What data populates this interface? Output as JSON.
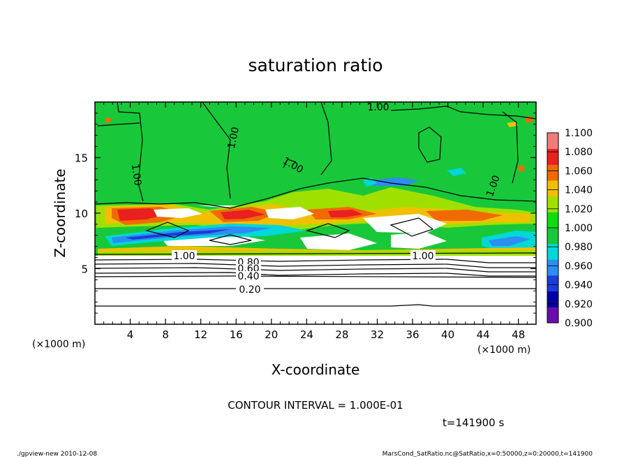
{
  "chart_data": {
    "type": "heatmap",
    "title": "saturation ratio",
    "xlabel": "X-coordinate",
    "ylabel": "Z-coordinate",
    "x_unit_left": "(×1000 m)",
    "x_unit_right": "(×1000 m)",
    "xlim": [
      0,
      50
    ],
    "ylim": [
      0,
      20
    ],
    "x_ticks": [
      4,
      8,
      12,
      16,
      20,
      24,
      28,
      32,
      36,
      40,
      44,
      48
    ],
    "y_ticks": [
      5,
      10,
      15
    ],
    "colorbar": {
      "levels": [
        0.9,
        0.92,
        0.94,
        0.96,
        0.98,
        1.0,
        1.02,
        1.04,
        1.06,
        1.08,
        1.1
      ],
      "labels": [
        "0.900",
        "0.920",
        "0.940",
        "0.960",
        "0.980",
        "1.000",
        "1.020",
        "1.040",
        "1.060",
        "1.080",
        "1.100"
      ],
      "colors": [
        "#6a0dad",
        "#0000a0",
        "#1c3cd8",
        "#2e8cf2",
        "#00d7d7",
        "#18c83a",
        "#10dc10",
        "#a0e000",
        "#f0c000",
        "#f06a00",
        "#e82020",
        "#f07c7c"
      ]
    },
    "contour_labels": [
      {
        "text": "1.00",
        "x": 40.3,
        "z": 19.6
      },
      {
        "text": "1.00",
        "x": 15.5,
        "z": 16.8
      },
      {
        "text": "1.00",
        "x": 4.6,
        "z": 13.5
      },
      {
        "text": "1.00",
        "x": 22.4,
        "z": 14.4
      },
      {
        "text": "1.00",
        "x": 44.5,
        "z": 12.3
      },
      {
        "text": "1.00",
        "x": 9.7,
        "z": 6.0
      },
      {
        "text": "1.00",
        "x": 37.1,
        "z": 6.0
      },
      {
        "text": "0.80",
        "x": 17.1,
        "z": 5.6
      },
      {
        "text": "0.60",
        "x": 17.1,
        "z": 5.1
      },
      {
        "text": "0.40",
        "x": 17.1,
        "z": 4.4
      },
      {
        "text": "0.20",
        "x": 17.1,
        "z": 3.2
      }
    ],
    "contour_interval": "CONTOUR INTERVAL = 1.000E-01",
    "time": "t=141900 s",
    "footer_left": "./gpview-new   2010-12-08",
    "footer_right": "MarsCond_SatRatio.nc@SatRatio,x=0:50000,z=0:20000,t=141900"
  }
}
